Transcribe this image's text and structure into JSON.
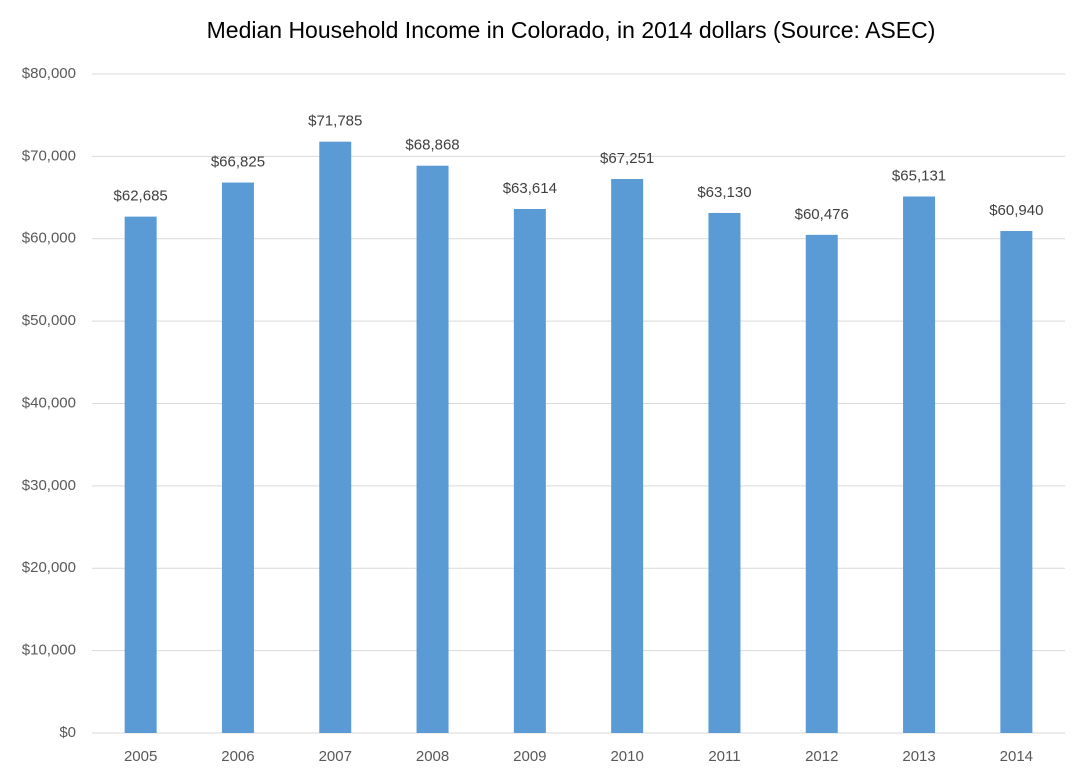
{
  "chart_data": {
    "type": "bar",
    "title": "Median Household Income in Colorado, in 2014 dollars (Source: ASEC)",
    "categories": [
      "2005",
      "2006",
      "2007",
      "2008",
      "2009",
      "2010",
      "2011",
      "2012",
      "2013",
      "2014"
    ],
    "values": [
      62685,
      66825,
      71785,
      68868,
      63614,
      67251,
      63130,
      60476,
      65131,
      60940
    ],
    "value_labels": [
      "$62,685",
      "$66,825",
      "$71,785",
      "$68,868",
      "$63,614",
      "$67,251",
      "$63,130",
      "$60,476",
      "$65,131",
      "$60,940"
    ],
    "color": "#5b9bd5",
    "ylim": [
      0,
      80000
    ],
    "yticks": [
      {
        "value": 0,
        "label": "$0"
      },
      {
        "value": 10000,
        "label": "$10,000"
      },
      {
        "value": 20000,
        "label": "$20,000"
      },
      {
        "value": 30000,
        "label": "$30,000"
      },
      {
        "value": 40000,
        "label": "$40,000"
      },
      {
        "value": 50000,
        "label": "$50,000"
      },
      {
        "value": 60000,
        "label": "$60,000"
      },
      {
        "value": 70000,
        "label": "$70,000"
      },
      {
        "value": 80000,
        "label": "$80,000"
      }
    ],
    "grid": true
  }
}
